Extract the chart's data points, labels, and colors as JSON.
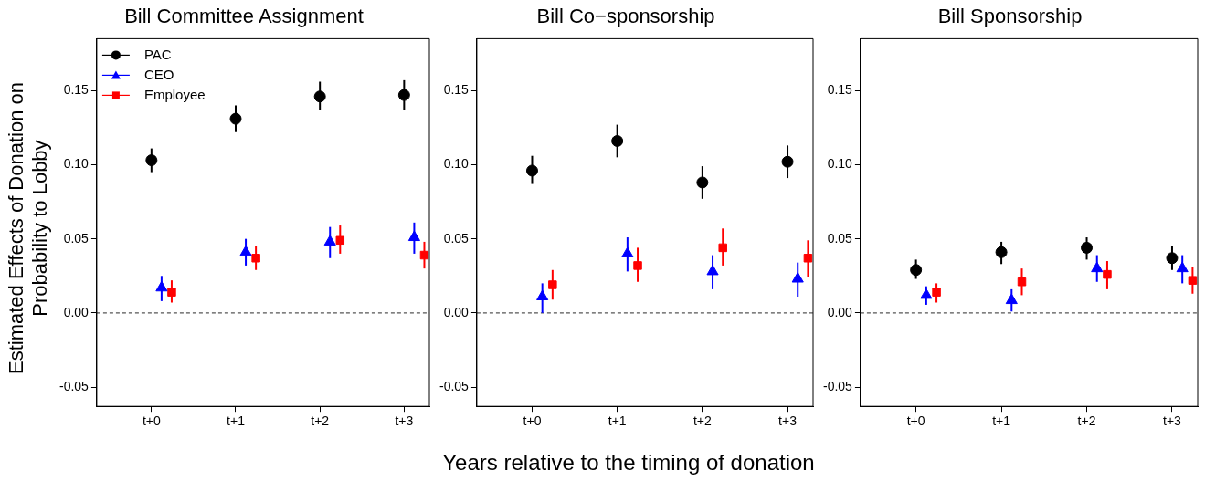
{
  "chart_data": [
    {
      "type": "scatter",
      "title": "Bill Committee Assignment",
      "ylabel": "Estimated Effects of Donation on\nProbability to Lobby",
      "categories": [
        "t+0",
        "t+1",
        "t+2",
        "t+3"
      ],
      "ylim": [
        -0.063,
        0.185
      ],
      "yticks": [
        {
          "value": -0.05,
          "label": "-0.05"
        },
        {
          "value": 0,
          "label": "0.00"
        },
        {
          "value": 0.05,
          "label": "0.05"
        },
        {
          "value": 0.1,
          "label": "0.10"
        },
        {
          "value": 0.15,
          "label": "0.15"
        }
      ],
      "legend": "top left",
      "ref_lines": [
        {
          "axis": "y",
          "value": 0,
          "color": "#555555",
          "line_style": "dashed"
        }
      ],
      "series": [
        {
          "name": "PAC",
          "color": "#000000",
          "marker": "circle",
          "values": [
            0.103,
            0.131,
            0.146,
            0.147
          ],
          "errors": [
            [
              0.095,
              0.111
            ],
            [
              0.122,
              0.14
            ],
            [
              0.137,
              0.156
            ],
            [
              0.137,
              0.157
            ]
          ]
        },
        {
          "name": "CEO",
          "color": "#0000ff",
          "marker": "triangle",
          "values": [
            0.017,
            0.041,
            0.048,
            0.051
          ],
          "errors": [
            [
              0.008,
              0.025
            ],
            [
              0.032,
              0.05
            ],
            [
              0.037,
              0.058
            ],
            [
              0.04,
              0.061
            ]
          ]
        },
        {
          "name": "Employee",
          "color": "#ff0000",
          "marker": "square",
          "values": [
            0.014,
            0.037,
            0.049,
            0.039
          ],
          "errors": [
            [
              0.007,
              0.022
            ],
            [
              0.029,
              0.045
            ],
            [
              0.04,
              0.059
            ],
            [
              0.03,
              0.048
            ]
          ]
        }
      ]
    },
    {
      "type": "scatter",
      "title": "Bill Co−sponsorship",
      "xlabel": "Years relative to the timing of donation",
      "categories": [
        "t+0",
        "t+1",
        "t+2",
        "t+3"
      ],
      "ylim": [
        -0.063,
        0.185
      ],
      "yticks": [
        {
          "value": -0.05,
          "label": "-0.05"
        },
        {
          "value": 0,
          "label": "0.00"
        },
        {
          "value": 0.05,
          "label": "0.05"
        },
        {
          "value": 0.1,
          "label": "0.10"
        },
        {
          "value": 0.15,
          "label": "0.15"
        }
      ],
      "ref_lines": [
        {
          "axis": "y",
          "value": 0,
          "color": "#555555",
          "line_style": "dashed"
        }
      ],
      "series": [
        {
          "color": "#000000",
          "marker": "circle",
          "values": [
            0.096,
            0.116,
            0.088,
            0.102
          ],
          "errors": [
            [
              0.087,
              0.106
            ],
            [
              0.105,
              0.127
            ],
            [
              0.077,
              0.099
            ],
            [
              0.091,
              0.113
            ]
          ]
        },
        {
          "color": "#0000ff",
          "marker": "triangle",
          "values": [
            0.011,
            0.04,
            0.028,
            0.023
          ],
          "errors": [
            [
              0.0,
              0.02
            ],
            [
              0.028,
              0.051
            ],
            [
              0.016,
              0.039
            ],
            [
              0.011,
              0.034
            ]
          ]
        },
        {
          "color": "#ff0000",
          "marker": "square",
          "values": [
            0.019,
            0.032,
            0.044,
            0.037
          ],
          "errors": [
            [
              0.009,
              0.029
            ],
            [
              0.021,
              0.044
            ],
            [
              0.032,
              0.057
            ],
            [
              0.024,
              0.049
            ]
          ]
        }
      ]
    },
    {
      "type": "scatter",
      "title": "Bill Sponsorship",
      "categories": [
        "t+0",
        "t+1",
        "t+2",
        "t+3"
      ],
      "ylim": [
        -0.063,
        0.185
      ],
      "yticks": [
        {
          "value": -0.05,
          "label": "-0.05"
        },
        {
          "value": 0,
          "label": "0.00"
        },
        {
          "value": 0.05,
          "label": "0.05"
        },
        {
          "value": 0.1,
          "label": "0.10"
        },
        {
          "value": 0.15,
          "label": "0.15"
        }
      ],
      "ref_lines": [
        {
          "axis": "y",
          "value": 0,
          "color": "#555555",
          "line_style": "dashed"
        }
      ],
      "series": [
        {
          "color": "#000000",
          "marker": "circle",
          "values": [
            0.029,
            0.041,
            0.044,
            0.037
          ],
          "errors": [
            [
              0.023,
              0.036
            ],
            [
              0.033,
              0.048
            ],
            [
              0.036,
              0.051
            ],
            [
              0.029,
              0.045
            ]
          ]
        },
        {
          "color": "#0000ff",
          "marker": "triangle",
          "values": [
            0.012,
            0.0085,
            0.03,
            0.03
          ],
          "errors": [
            [
              0.0055,
              0.018
            ],
            [
              0.001,
              0.016
            ],
            [
              0.021,
              0.039
            ],
            [
              0.02,
              0.039
            ]
          ]
        },
        {
          "color": "#ff0000",
          "marker": "square",
          "values": [
            0.014,
            0.021,
            0.026,
            0.022
          ],
          "errors": [
            [
              0.007,
              0.02
            ],
            [
              0.012,
              0.03
            ],
            [
              0.016,
              0.035
            ],
            [
              0.013,
              0.031
            ]
          ]
        }
      ]
    }
  ]
}
